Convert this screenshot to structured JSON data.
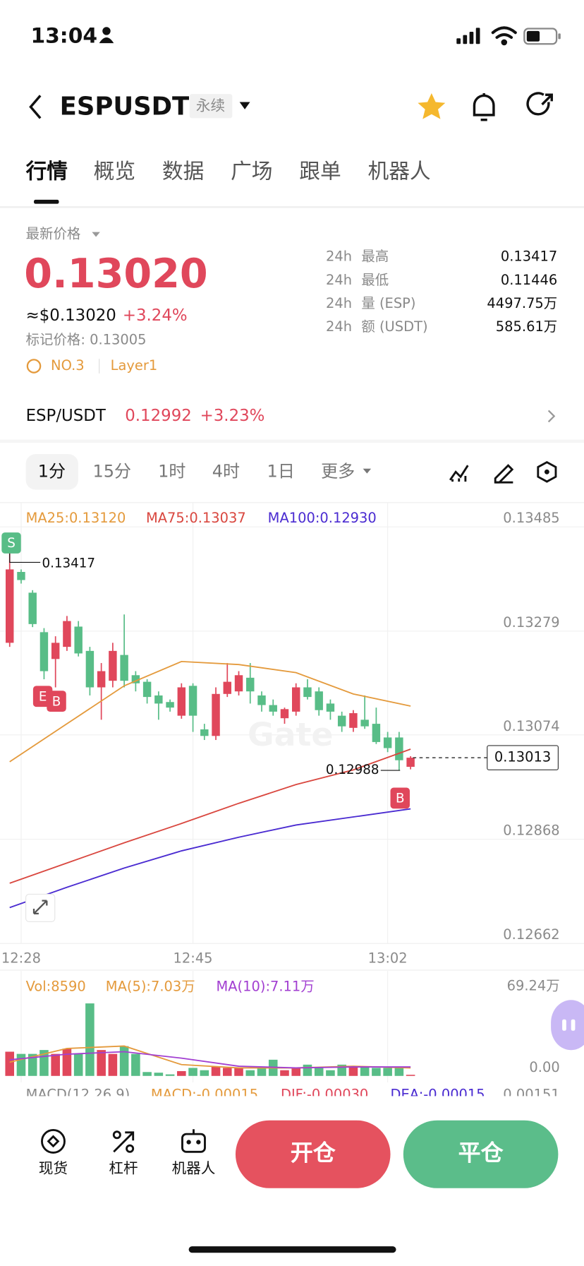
{
  "status": {
    "time": "13:04"
  },
  "header": {
    "symbol": "ESPUSDT",
    "tag": "永续"
  },
  "tabs": [
    "行情",
    "概览",
    "数据",
    "广场",
    "跟单",
    "机器人"
  ],
  "price": {
    "label": "最新价格",
    "last": "0.13020",
    "usd": "≈$0.13020",
    "change": "+3.24%",
    "mark": "标记价格: 0.13005",
    "rank": "NO.3",
    "sector": "Layer1"
  },
  "stats": [
    {
      "period": "24h",
      "label": "最高",
      "value": "0.13417"
    },
    {
      "period": "24h",
      "label": "最低",
      "value": "0.11446"
    },
    {
      "period": "24h",
      "label": "量 (ESP)",
      "value": "4497.75万"
    },
    {
      "period": "24h",
      "label": "额 (USDT)",
      "value": "585.61万"
    }
  ],
  "spot": {
    "pair": "ESP/USDT",
    "price": "0.12992",
    "change": "+3.23%"
  },
  "intervals": [
    "1分",
    "15分",
    "1时",
    "4时",
    "1日",
    "更多"
  ],
  "chart": {
    "type": "candlestick",
    "up_color": "#e0475b",
    "down_color": "#58bd87",
    "watermark": "Gate",
    "ylim": [
      0.12646,
      0.13517
    ],
    "yticks": [
      0.13485,
      0.13279,
      0.13074,
      0.12868,
      0.12662
    ],
    "xticks": [
      {
        "value": 1,
        "label": "12:28"
      },
      {
        "value": 16,
        "label": "12:45"
      },
      {
        "value": 33,
        "label": "13:02"
      }
    ],
    "open": [
      0.1324,
      0.1338,
      0.13339,
      0.13261,
      0.13208,
      0.13232,
      0.13272,
      0.13224,
      0.13152,
      0.13165,
      0.13216,
      0.13176,
      0.13163,
      0.13136,
      0.13123,
      0.13096,
      0.13155,
      0.13069,
      0.13056,
      0.13139,
      0.13144,
      0.13171,
      0.13136,
      0.13117,
      0.13091,
      0.13104,
      0.13152,
      0.13144,
      0.1312,
      0.13096,
      0.13072,
      0.13088,
      0.1308,
      0.13053,
      0.13053,
      0.12995
    ],
    "high": [
      0.13417,
      0.13385,
      0.13344,
      0.13269,
      0.13253,
      0.13293,
      0.13283,
      0.13232,
      0.132,
      0.1324,
      0.13296,
      0.13184,
      0.13168,
      0.13144,
      0.13128,
      0.1316,
      0.1316,
      0.1308,
      0.13152,
      0.132,
      0.13184,
      0.132,
      0.13144,
      0.13128,
      0.13112,
      0.1316,
      0.13168,
      0.13152,
      0.13128,
      0.13104,
      0.13107,
      0.13136,
      0.13112,
      0.13064,
      0.13064,
      0.13016
    ],
    "low": [
      0.13232,
      0.13357,
      0.13271,
      0.13168,
      0.13152,
      0.13224,
      0.13213,
      0.13136,
      0.13088,
      0.13152,
      0.13152,
      0.13144,
      0.1312,
      0.13088,
      0.13104,
      0.1309,
      0.13064,
      0.13048,
      0.13048,
      0.13133,
      0.13136,
      0.1312,
      0.13104,
      0.13096,
      0.1308,
      0.13096,
      0.13128,
      0.13096,
      0.13088,
      0.13064,
      0.13064,
      0.1307,
      0.1304,
      0.13024,
      0.12988,
      0.1299
    ],
    "close": [
      0.13385,
      0.13364,
      0.13277,
      0.13184,
      0.1324,
      0.13283,
      0.13219,
      0.13152,
      0.13184,
      0.13224,
      0.13165,
      0.1316,
      0.13133,
      0.1312,
      0.13112,
      0.13152,
      0.13096,
      0.13056,
      0.13139,
      0.13163,
      0.13176,
      0.13144,
      0.13117,
      0.13104,
      0.13109,
      0.13152,
      0.13133,
      0.13107,
      0.13104,
      0.13075,
      0.13101,
      0.13075,
      0.13044,
      0.13032,
      0.13008,
      0.13013
    ],
    "series": [
      {
        "name": "MA25:0.13120",
        "color": "#e49a3c",
        "x": [
          0,
          5,
          10,
          15,
          20,
          25,
          30,
          35
        ],
        "values": [
          0.13005,
          0.1308,
          0.13155,
          0.13203,
          0.13197,
          0.13181,
          0.13139,
          0.13115
        ]
      },
      {
        "name": "MA75:0.13037",
        "color": "#d9473f",
        "x": [
          0,
          5,
          10,
          15,
          20,
          25,
          30,
          35
        ],
        "values": [
          0.12765,
          0.12805,
          0.12845,
          0.12883,
          0.12923,
          0.1296,
          0.12989,
          0.1303
        ]
      },
      {
        "name": "MA100:0.12930",
        "color": "#4a2bd1",
        "x": [
          0,
          5,
          10,
          15,
          20,
          25,
          30,
          35
        ],
        "values": [
          0.12717,
          0.12757,
          0.12795,
          0.12829,
          0.12856,
          0.1288,
          0.12896,
          0.12912
        ]
      }
    ],
    "high_label": 0.13417,
    "low_label": 0.12988,
    "current": 0.13013,
    "markers": [
      "S",
      "E",
      "B",
      "B"
    ]
  },
  "volume": {
    "ylim": [
      0,
      79.2
    ],
    "yticks": [
      {
        "value": 69.24,
        "label": "69.24万"
      },
      {
        "value": 0,
        "label": "0.00"
      }
    ],
    "legend": [
      {
        "text": "Vol:8590",
        "color": "#e49a3c"
      }
    ],
    "values": [
      18.7,
      17,
      17,
      20,
      17,
      21,
      17,
      56,
      20,
      17,
      23,
      17,
      3,
      2.5,
      1.2,
      3.7,
      6.2,
      4.4,
      7.5,
      6.2,
      6.2,
      4.4,
      6.2,
      12.5,
      4.4,
      6.2,
      8.7,
      6.2,
      4.4,
      8.7,
      7.5,
      7.5,
      6.2,
      6.2,
      6.2,
      0.859
    ],
    "series": [
      {
        "name": "MA(5):7.03万",
        "color": "#e49a3c",
        "x": [
          0,
          5,
          10,
          15,
          20,
          25,
          30,
          35
        ],
        "values": [
          10.6,
          21.2,
          23.1,
          8.7,
          6.2,
          6.2,
          7.5,
          6.2
        ]
      },
      {
        "name": "MA(10):7.11万",
        "color": "#a23fd1",
        "x": [
          0,
          5,
          10,
          15,
          20,
          25,
          30,
          35
        ],
        "values": [
          12.5,
          16.8,
          18.7,
          13.7,
          7.5,
          6.2,
          6.9,
          6.9
        ]
      }
    ]
  },
  "macd": {
    "labels": [
      "MACD(12,26,9)",
      "MACD:-0.00015",
      "DIF:-0.00030",
      "DEA:-0.00015"
    ],
    "axis": "0.00151"
  },
  "bottom": {
    "nav": [
      "现货",
      "杠杆",
      "机器人"
    ],
    "open": "开仓",
    "close": "平仓"
  }
}
